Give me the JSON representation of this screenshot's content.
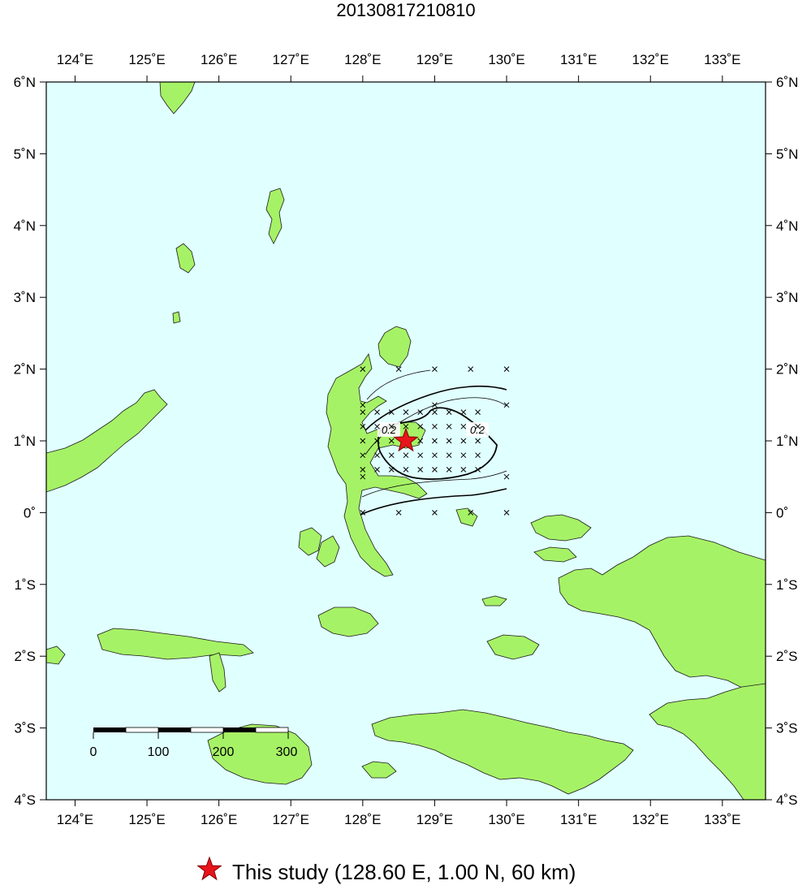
{
  "title": "20130817210810",
  "colors": {
    "sea": "#e0ffff",
    "land": "#a6f266",
    "coast": "#1a1a1a",
    "epicenter": "#e8141c",
    "frame": "#000000"
  },
  "axes": {
    "lon_range": [
      123.6,
      133.6
    ],
    "lat_range": [
      -4,
      6
    ],
    "lon_ticks": [
      "124˚E",
      "125˚E",
      "126˚E",
      "127˚E",
      "128˚E",
      "129˚E",
      "130˚E",
      "131˚E",
      "132˚E",
      "133˚E"
    ],
    "lat_ticks": [
      "6˚N",
      "5˚N",
      "4˚N",
      "3˚N",
      "2˚N",
      "1˚N",
      "0˚",
      "1˚S",
      "2˚S",
      "3˚S",
      "4˚S"
    ]
  },
  "scale_bar": {
    "labels": [
      "0",
      "100",
      "200",
      "300"
    ]
  },
  "contours": {
    "labels": [
      "0.2",
      "0.2"
    ]
  },
  "epicenter": {
    "lon": 128.6,
    "lat": 1.0,
    "depth_km": 60
  },
  "legend": {
    "icon": "star-icon",
    "text": "This study (128.60 E, 1.00 N, 60 km)"
  }
}
